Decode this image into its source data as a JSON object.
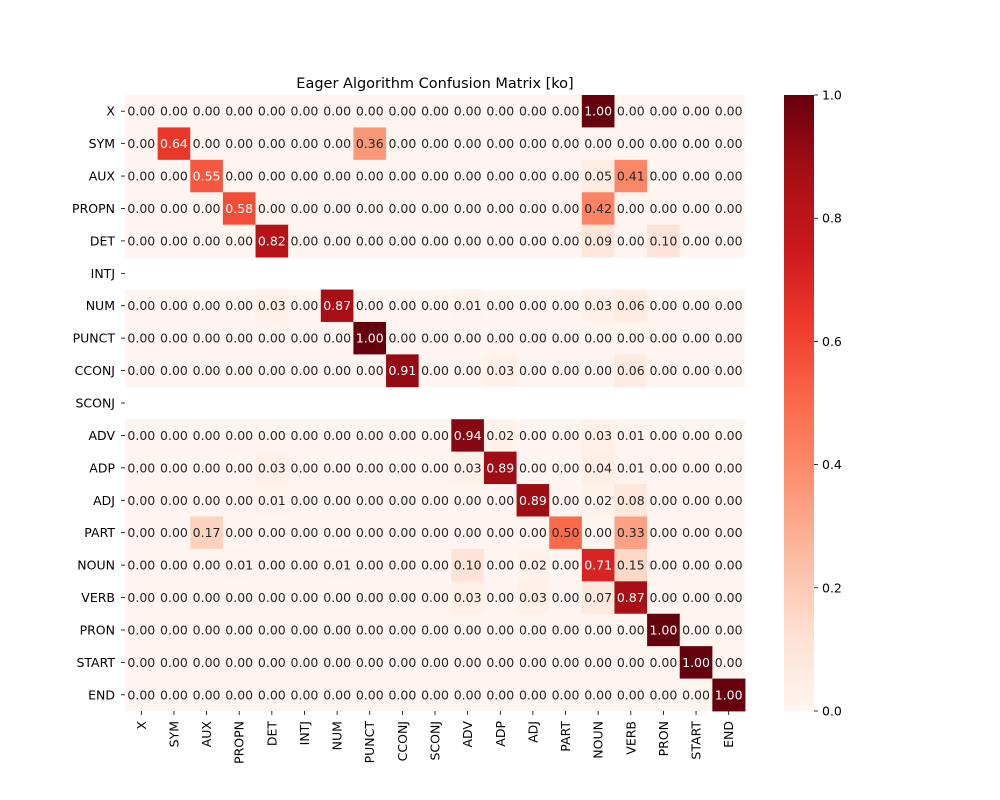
{
  "chart_data": {
    "type": "heatmap",
    "title": "Eager Algorithm Confusion Matrix [ko]",
    "xlabel": "",
    "ylabel": "",
    "row_labels": [
      "X",
      "SYM",
      "AUX",
      "PROPN",
      "DET",
      "INTJ",
      "NUM",
      "PUNCT",
      "CCONJ",
      "SCONJ",
      "ADV",
      "ADP",
      "ADJ",
      "PART",
      "NOUN",
      "VERB",
      "PRON",
      "START",
      "END"
    ],
    "col_labels": [
      "X",
      "SYM",
      "AUX",
      "PROPN",
      "DET",
      "INTJ",
      "NUM",
      "PUNCT",
      "CCONJ",
      "SCONJ",
      "ADV",
      "ADP",
      "ADJ",
      "PART",
      "NOUN",
      "VERB",
      "PRON",
      "START",
      "END"
    ],
    "values": [
      [
        0.0,
        0.0,
        0.0,
        0.0,
        0.0,
        0.0,
        0.0,
        0.0,
        0.0,
        0.0,
        0.0,
        0.0,
        0.0,
        0.0,
        1.0,
        0.0,
        0.0,
        0.0,
        0.0
      ],
      [
        0.0,
        0.64,
        0.0,
        0.0,
        0.0,
        0.0,
        0.0,
        0.36,
        0.0,
        0.0,
        0.0,
        0.0,
        0.0,
        0.0,
        0.0,
        0.0,
        0.0,
        0.0,
        0.0
      ],
      [
        0.0,
        0.0,
        0.55,
        0.0,
        0.0,
        0.0,
        0.0,
        0.0,
        0.0,
        0.0,
        0.0,
        0.0,
        0.0,
        0.0,
        0.05,
        0.41,
        0.0,
        0.0,
        0.0
      ],
      [
        0.0,
        0.0,
        0.0,
        0.58,
        0.0,
        0.0,
        0.0,
        0.0,
        0.0,
        0.0,
        0.0,
        0.0,
        0.0,
        0.0,
        0.42,
        0.0,
        0.0,
        0.0,
        0.0
      ],
      [
        0.0,
        0.0,
        0.0,
        0.0,
        0.82,
        0.0,
        0.0,
        0.0,
        0.0,
        0.0,
        0.0,
        0.0,
        0.0,
        0.0,
        0.09,
        0.0,
        0.1,
        0.0,
        0.0
      ],
      [
        null,
        null,
        null,
        null,
        null,
        null,
        null,
        null,
        null,
        null,
        null,
        null,
        null,
        null,
        null,
        null,
        null,
        null,
        null
      ],
      [
        0.0,
        0.0,
        0.0,
        0.0,
        0.03,
        0.0,
        0.87,
        0.0,
        0.0,
        0.0,
        0.01,
        0.0,
        0.0,
        0.0,
        0.03,
        0.06,
        0.0,
        0.0,
        0.0
      ],
      [
        0.0,
        0.0,
        0.0,
        0.0,
        0.0,
        0.0,
        0.0,
        1.0,
        0.0,
        0.0,
        0.0,
        0.0,
        0.0,
        0.0,
        0.0,
        0.0,
        0.0,
        0.0,
        0.0
      ],
      [
        0.0,
        0.0,
        0.0,
        0.0,
        0.0,
        0.0,
        0.0,
        0.0,
        0.91,
        0.0,
        0.0,
        0.03,
        0.0,
        0.0,
        0.0,
        0.06,
        0.0,
        0.0,
        0.0
      ],
      [
        null,
        null,
        null,
        null,
        null,
        null,
        null,
        null,
        null,
        null,
        null,
        null,
        null,
        null,
        null,
        null,
        null,
        null,
        null
      ],
      [
        0.0,
        0.0,
        0.0,
        0.0,
        0.0,
        0.0,
        0.0,
        0.0,
        0.0,
        0.0,
        0.94,
        0.02,
        0.0,
        0.0,
        0.03,
        0.01,
        0.0,
        0.0,
        0.0
      ],
      [
        0.0,
        0.0,
        0.0,
        0.0,
        0.03,
        0.0,
        0.0,
        0.0,
        0.0,
        0.0,
        0.03,
        0.89,
        0.0,
        0.0,
        0.04,
        0.01,
        0.0,
        0.0,
        0.0
      ],
      [
        0.0,
        0.0,
        0.0,
        0.0,
        0.01,
        0.0,
        0.0,
        0.0,
        0.0,
        0.0,
        0.0,
        0.0,
        0.89,
        0.0,
        0.02,
        0.08,
        0.0,
        0.0,
        0.0
      ],
      [
        0.0,
        0.0,
        0.17,
        0.0,
        0.0,
        0.0,
        0.0,
        0.0,
        0.0,
        0.0,
        0.0,
        0.0,
        0.0,
        0.5,
        0.0,
        0.33,
        0.0,
        0.0,
        0.0
      ],
      [
        0.0,
        0.0,
        0.0,
        0.01,
        0.0,
        0.0,
        0.01,
        0.0,
        0.0,
        0.0,
        0.1,
        0.0,
        0.02,
        0.0,
        0.71,
        0.15,
        0.0,
        0.0,
        0.0
      ],
      [
        0.0,
        0.0,
        0.0,
        0.0,
        0.0,
        0.0,
        0.0,
        0.0,
        0.0,
        0.0,
        0.03,
        0.0,
        0.03,
        0.0,
        0.07,
        0.87,
        0.0,
        0.0,
        0.0
      ],
      [
        0.0,
        0.0,
        0.0,
        0.0,
        0.0,
        0.0,
        0.0,
        0.0,
        0.0,
        0.0,
        0.0,
        0.0,
        0.0,
        0.0,
        0.0,
        0.0,
        1.0,
        0.0,
        0.0
      ],
      [
        0.0,
        0.0,
        0.0,
        0.0,
        0.0,
        0.0,
        0.0,
        0.0,
        0.0,
        0.0,
        0.0,
        0.0,
        0.0,
        0.0,
        0.0,
        0.0,
        0.0,
        1.0,
        0.0
      ],
      [
        0.0,
        0.0,
        0.0,
        0.0,
        0.0,
        0.0,
        0.0,
        0.0,
        0.0,
        0.0,
        0.0,
        0.0,
        0.0,
        0.0,
        0.0,
        0.0,
        0.0,
        0.0,
        1.0
      ]
    ],
    "value_format": "0.00",
    "colormap": "Reds",
    "colorbar": {
      "min": 0.0,
      "max": 1.0,
      "ticks": [
        0.0,
        0.2,
        0.4,
        0.6,
        0.8,
        1.0
      ],
      "tick_labels": [
        "0.0",
        "0.2",
        "0.4",
        "0.6",
        "0.8",
        "1.0"
      ],
      "placement": "right"
    },
    "grid": false
  }
}
